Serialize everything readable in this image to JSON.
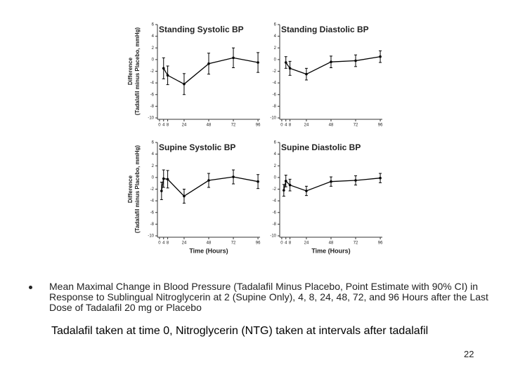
{
  "chart_data": [
    {
      "type": "line",
      "title": "Standing Systolic BP",
      "ylabel": [
        "Difference",
        "(Tadalafil minus Placebo, mmHg)"
      ],
      "x": [
        4,
        8,
        24,
        48,
        72,
        96
      ],
      "values": [
        -1.5,
        -2.7,
        -4.2,
        -0.7,
        0.3,
        -0.5
      ],
      "errors": [
        1.8,
        1.6,
        1.8,
        1.8,
        1.7,
        1.7
      ],
      "color": "#000000",
      "xlim": [
        -2,
        98
      ],
      "ylim": [
        -10,
        6
      ],
      "xticks": [
        0,
        4,
        8,
        24,
        48,
        72,
        96
      ],
      "yticks": [
        6,
        4,
        2,
        0,
        -2,
        -4,
        -6,
        -8,
        -10
      ]
    },
    {
      "type": "line",
      "title": "Standing Diastolic BP",
      "x": [
        4,
        8,
        24,
        48,
        72,
        96
      ],
      "values": [
        -0.5,
        -1.5,
        -2.5,
        -0.4,
        -0.2,
        0.5
      ],
      "errors": [
        1.0,
        1.2,
        1.0,
        1.0,
        1.0,
        1.0
      ],
      "color": "#000000",
      "xlim": [
        -2,
        98
      ],
      "ylim": [
        -10,
        6
      ],
      "xticks": [
        0,
        4,
        8,
        24,
        48,
        72,
        96
      ],
      "yticks": [
        6,
        4,
        2,
        0,
        -2,
        -4,
        -6,
        -8,
        -10
      ]
    },
    {
      "type": "line",
      "title": "Supine Systolic BP",
      "ylabel": [
        "Difference",
        "(Tadalafil minus Placebo, mmHg)"
      ],
      "xlabel": "Time (Hours)",
      "x": [
        2,
        4,
        8,
        24,
        48,
        72,
        96
      ],
      "values": [
        -2.3,
        -0.2,
        -0.3,
        -3.2,
        -0.5,
        0.1,
        -0.7
      ],
      "errors": [
        1.5,
        1.5,
        1.5,
        1.2,
        1.2,
        1.2,
        1.2
      ],
      "color": "#000000",
      "xlim": [
        -2,
        98
      ],
      "ylim": [
        -10,
        6
      ],
      "xticks": [
        0,
        4,
        8,
        24,
        48,
        72,
        96
      ],
      "yticks": [
        6,
        4,
        2,
        0,
        -2,
        -4,
        -6,
        -8,
        -10
      ]
    },
    {
      "type": "line",
      "title": "Supine Diastolic BP",
      "xlabel": "Time (Hours)",
      "x": [
        2,
        4,
        8,
        24,
        48,
        72,
        96
      ],
      "values": [
        -2.2,
        -0.6,
        -1.3,
        -2.3,
        -0.7,
        -0.5,
        -0.1
      ],
      "errors": [
        1.0,
        1.0,
        1.0,
        0.8,
        0.8,
        0.8,
        0.8
      ],
      "color": "#000000",
      "xlim": [
        -2,
        98
      ],
      "ylim": [
        -10,
        6
      ],
      "xticks": [
        0,
        4,
        8,
        24,
        48,
        72,
        96
      ],
      "yticks": [
        6,
        4,
        2,
        0,
        -2,
        -4,
        -6,
        -8,
        -10
      ]
    }
  ],
  "slide": {
    "caption": "Mean Maximal Change in Blood Pressure (Tadalafil Minus Placebo, Point Estimate with 90% CI) in Response to Sublingual Nitroglycerin at 2 (Supine Only), 4, 8, 24, 48, 72, and 96 Hours after the Last Dose of Tadalafil 20 mg or Placebo",
    "note": "Tadalafil taken at time 0, Nitroglycerin (NTG) taken at intervals after tadalafil",
    "page_number": "22"
  }
}
